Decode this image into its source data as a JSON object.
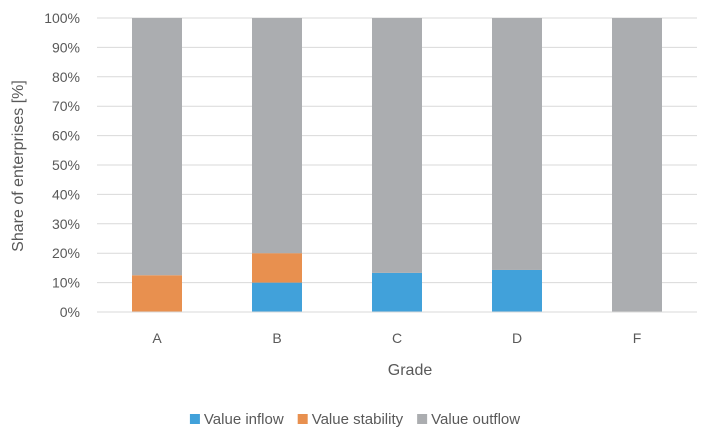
{
  "chart_data": {
    "type": "bar",
    "stacked": true,
    "categories": [
      "A",
      "B",
      "C",
      "D",
      "F"
    ],
    "series": [
      {
        "name": "Value inflow",
        "values": [
          0,
          10,
          13.3,
          14.3,
          0
        ],
        "color": "#41A1DA"
      },
      {
        "name": "Value stability",
        "values": [
          12.5,
          10,
          0,
          0,
          0
        ],
        "color": "#E8904F"
      },
      {
        "name": "Value outflow",
        "values": [
          87.5,
          80,
          86.7,
          85.7,
          100
        ],
        "color": "#ABADB0"
      }
    ],
    "xlabel": "Grade",
    "ylabel": "Share of enterprises [%]",
    "ylim": [
      0,
      100
    ],
    "yticks": [
      "0%",
      "10%",
      "20%",
      "30%",
      "40%",
      "50%",
      "60%",
      "70%",
      "80%",
      "90%",
      "100%"
    ],
    "grid": true,
    "legend": "bottom"
  }
}
